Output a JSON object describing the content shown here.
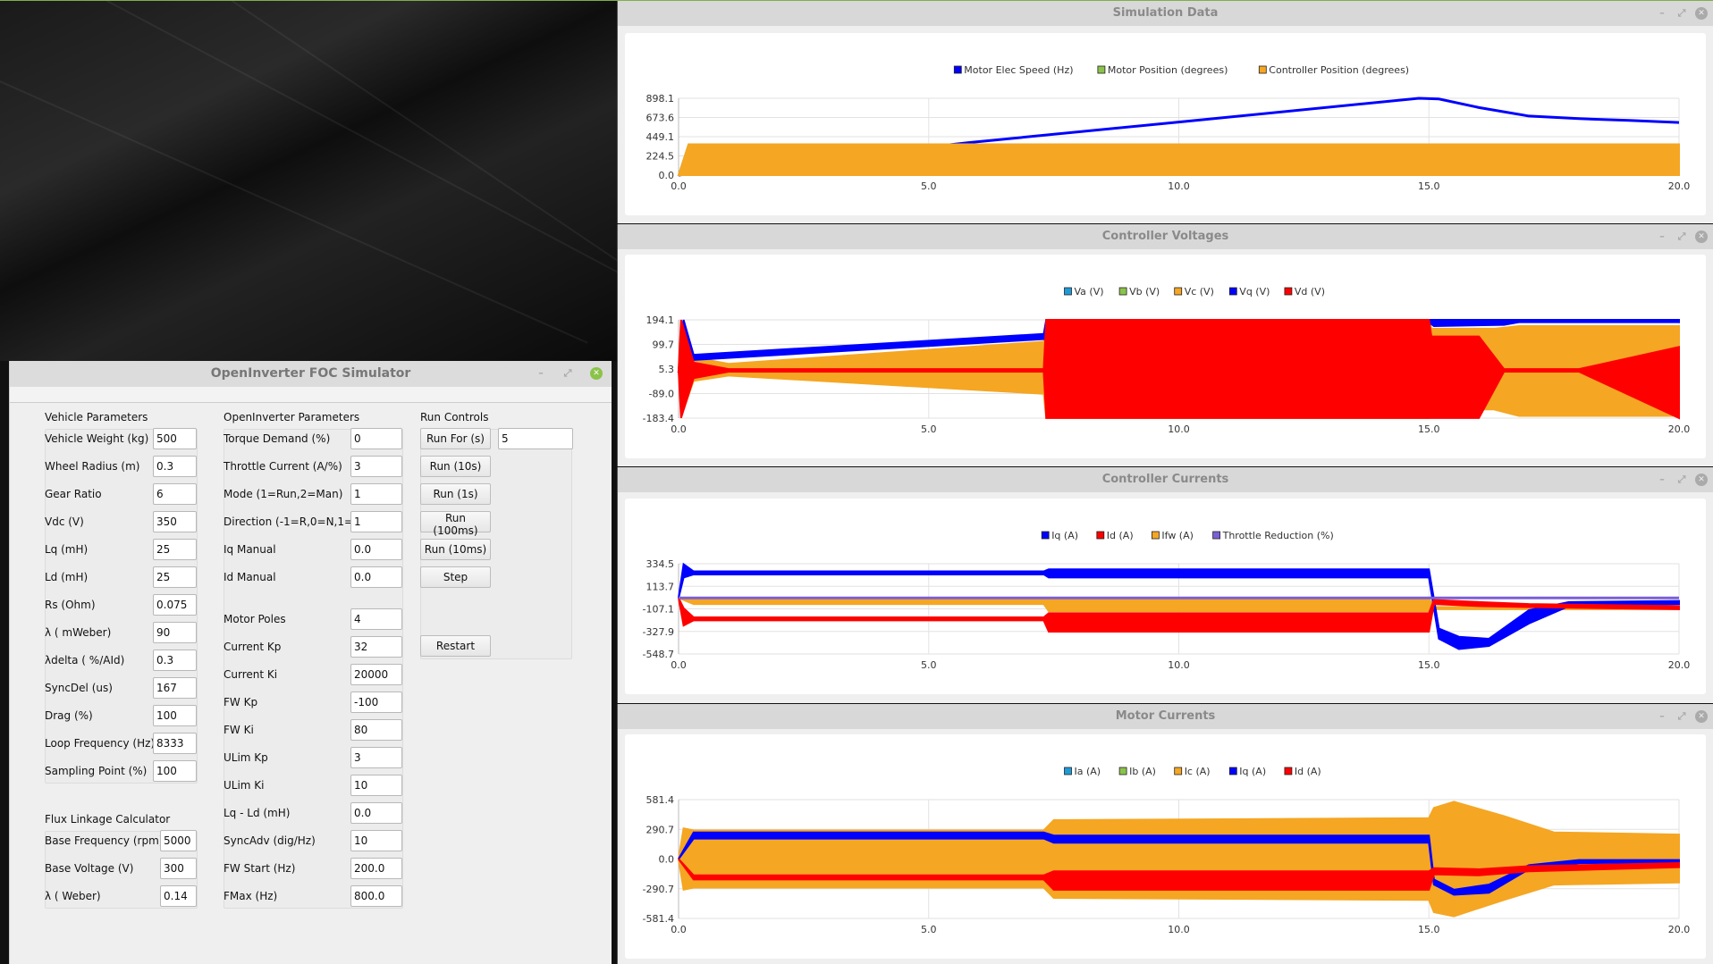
{
  "simulator": {
    "title": "OpenInverter FOC Simulator",
    "vehicle": {
      "heading": "Vehicle Parameters",
      "rows": [
        {
          "label": "Vehicle Weight (kg)",
          "value": "500"
        },
        {
          "label": "Wheel Radius (m)",
          "value": "0.3"
        },
        {
          "label": "Gear Ratio",
          "value": "6"
        },
        {
          "label": "Vdc (V)",
          "value": "350"
        },
        {
          "label": "Lq (mH)",
          "value": "25"
        },
        {
          "label": "Ld (mH)",
          "value": "25"
        },
        {
          "label": "Rs (Ohm)",
          "value": "0.075"
        },
        {
          "label": "λ ( mWeber)",
          "value": "90"
        },
        {
          "label": "λdelta ( %/AId)",
          "value": "0.3"
        },
        {
          "label": "SyncDel (us)",
          "value": "167"
        },
        {
          "label": "Drag (%)",
          "value": "100"
        },
        {
          "label": "Loop Frequency (Hz)",
          "value": "8333"
        },
        {
          "label": "Sampling Point (%)",
          "value": "100"
        }
      ]
    },
    "flux": {
      "heading": "Flux Linkage Calculator",
      "rows": [
        {
          "label": "Base Frequency (rpm)",
          "value": "5000"
        },
        {
          "label": "Base Voltage (V)",
          "value": "300"
        },
        {
          "label": "λ ( Weber)",
          "value": "0.14"
        }
      ]
    },
    "openinverter": {
      "heading": "OpenInverter Parameters",
      "rows": [
        {
          "label": "Torque Demand (%)",
          "value": "0"
        },
        {
          "label": "Throttle Current (A/%)",
          "value": "3"
        },
        {
          "label": "Mode (1=Run,2=Man)",
          "value": "1"
        },
        {
          "label": "Direction (-1=R,0=N,1=F)",
          "value": "1"
        },
        {
          "label": "Iq Manual",
          "value": "0.0"
        },
        {
          "label": "Id Manual",
          "value": "0.0"
        },
        {
          "label": "Motor Poles",
          "value": "4"
        },
        {
          "label": "Current Kp",
          "value": "32"
        },
        {
          "label": "Current Ki",
          "value": "20000"
        },
        {
          "label": "FW Kp",
          "value": "-100"
        },
        {
          "label": "FW Ki",
          "value": "80"
        },
        {
          "label": "ULim Kp",
          "value": "3"
        },
        {
          "label": "ULim Ki",
          "value": "10"
        },
        {
          "label": "Lq - Ld (mH)",
          "value": "0.0"
        },
        {
          "label": "SyncAdv (dig/Hz)",
          "value": "10"
        },
        {
          "label": "FW Start (Hz)",
          "value": "200.0"
        },
        {
          "label": "FMax (Hz)",
          "value": "800.0"
        }
      ]
    },
    "run": {
      "heading": "Run Controls",
      "run_for_label": "Run For (s)",
      "run_for_value": "5",
      "buttons": [
        "Run (10s)",
        "Run (1s)",
        "Run (100ms)",
        "Run (10ms)",
        "Step"
      ],
      "restart": "Restart"
    }
  },
  "chart_data": [
    {
      "window_title": "Simulation Data",
      "type": "line",
      "legend": [
        {
          "name": "Motor Elec Speed (Hz)",
          "color": "#0000ff"
        },
        {
          "name": "Motor Position (degrees)",
          "color": "#8bc34a"
        },
        {
          "name": "Controller Position (degrees)",
          "color": "#f5a623"
        }
      ],
      "xlim": [
        0,
        20
      ],
      "ylim": [
        0,
        898.1
      ],
      "xticks": [
        "0.0",
        "5.0",
        "10.0",
        "15.0",
        "20.0"
      ],
      "yticks": [
        "0.0",
        "224.5",
        "449.1",
        "673.6",
        "898.1"
      ],
      "grid": true,
      "legend_position": "top",
      "series": [
        {
          "name": "Motor Elec Speed (Hz)",
          "color": "#0000ff",
          "x": [
            0,
            0.3,
            5.8,
            10,
            14.8,
            15.2,
            16,
            17,
            18,
            19,
            20
          ],
          "y": [
            0,
            20,
            380,
            620,
            898,
            890,
            790,
            690,
            660,
            640,
            615
          ]
        },
        {
          "name": "Motor Position (degrees)",
          "color": "#8bc34a",
          "x": [
            0,
            0.2,
            20
          ],
          "lo": [
            0,
            0,
            0
          ],
          "hi": [
            0,
            360,
            360
          ]
        },
        {
          "name": "Controller Position (degrees)",
          "color": "#f5a623",
          "x": [
            0,
            0.2,
            0.25,
            20
          ],
          "lo": [
            0,
            0,
            0,
            0
          ],
          "hi": [
            0,
            360,
            360,
            360
          ]
        }
      ]
    },
    {
      "window_title": "Controller Voltages",
      "type": "line",
      "legend": [
        {
          "name": "Va (V)",
          "color": "#1e9bd7"
        },
        {
          "name": "Vb (V)",
          "color": "#8bc34a"
        },
        {
          "name": "Vc (V)",
          "color": "#f5a623"
        },
        {
          "name": "Vq (V)",
          "color": "#0000ff"
        },
        {
          "name": "Vd (V)",
          "color": "#ff0000"
        }
      ],
      "xlim": [
        0,
        20
      ],
      "ylim": [
        -183.4,
        194.1
      ],
      "xticks": [
        "0.0",
        "5.0",
        "10.0",
        "15.0",
        "20.0"
      ],
      "yticks": [
        "-183.4",
        "-89.0",
        "5.3",
        "99.7",
        "194.1"
      ],
      "grid": true,
      "legend_position": "top",
      "series": [
        {
          "name": "Vc (V)",
          "color": "#f5a623",
          "x": [
            0,
            0.1,
            0.3,
            1,
            7.3,
            7.35,
            15,
            15.05,
            16.3,
            16.8,
            20
          ],
          "lo": [
            0,
            -150,
            -40,
            -20,
            -90,
            -183,
            -183,
            -150,
            -150,
            -175,
            -175
          ],
          "hi": [
            0,
            190,
            50,
            25,
            110,
            194,
            194,
            160,
            160,
            170,
            170
          ]
        },
        {
          "name": "Vq (V)",
          "color": "#0000ff",
          "x": [
            0,
            0.1,
            0.3,
            7.3,
            7.35,
            15,
            15.1,
            16.5,
            16.8,
            20
          ],
          "lo": [
            0,
            20,
            40,
            120,
            185,
            185,
            170,
            175,
            185,
            185
          ],
          "hi": [
            0,
            194,
            60,
            140,
            194,
            194,
            194,
            194,
            194,
            194
          ]
        },
        {
          "name": "Vd (V)",
          "color": "#ff0000",
          "x": [
            0,
            0.05,
            0.3,
            1,
            7.3,
            7.35,
            15,
            15.05,
            16,
            16.5,
            17,
            18,
            20
          ],
          "lo": [
            0,
            -183,
            -30,
            -5,
            -5,
            -183,
            -183,
            -183,
            -183,
            -5,
            -5,
            -5,
            -183
          ],
          "hi": [
            0,
            194,
            30,
            5,
            5,
            194,
            194,
            130,
            130,
            5,
            5,
            5,
            90
          ]
        }
      ]
    },
    {
      "window_title": "Controller Currents",
      "type": "line",
      "legend": [
        {
          "name": "Iq (A)",
          "color": "#0000ff"
        },
        {
          "name": "Id (A)",
          "color": "#ff0000"
        },
        {
          "name": "Ifw (A)",
          "color": "#f5a623"
        },
        {
          "name": "Throttle Reduction (%)",
          "color": "#7b5fd6"
        }
      ],
      "xlim": [
        0,
        20
      ],
      "ylim": [
        -548.7,
        334.5
      ],
      "xticks": [
        "0.0",
        "5.0",
        "10.0",
        "15.0",
        "20.0"
      ],
      "yticks": [
        "-548.7",
        "-327.9",
        "-107.1",
        "113.7",
        "334.5"
      ],
      "grid": true,
      "legend_position": "top",
      "series": [
        {
          "name": "Ifw (A)",
          "color": "#f5a623",
          "x": [
            0,
            0.3,
            7.3,
            7.4,
            15,
            15.1,
            20
          ],
          "lo": [
            0,
            -60,
            -60,
            -130,
            -130,
            -110,
            -110
          ],
          "hi": [
            0,
            0,
            0,
            -5,
            -5,
            -90,
            -90
          ]
        },
        {
          "name": "Iq (A)",
          "color": "#0000ff",
          "x": [
            0,
            0.1,
            0.3,
            7.3,
            7.4,
            15,
            15.2,
            15.6,
            16.2,
            17,
            17.8,
            20
          ],
          "lo": [
            0,
            200,
            230,
            230,
            200,
            200,
            -400,
            -500,
            -470,
            -250,
            -80,
            -60
          ],
          "hi": [
            0,
            330,
            260,
            260,
            280,
            280,
            -300,
            -380,
            -400,
            -120,
            -40,
            -30
          ]
        },
        {
          "name": "Id (A)",
          "color": "#ff0000",
          "x": [
            0,
            0.1,
            0.3,
            7.3,
            7.4,
            15,
            15.1,
            16,
            17,
            20
          ],
          "lo": [
            0,
            -270,
            -220,
            -220,
            -330,
            -330,
            -60,
            -80,
            -90,
            -110
          ],
          "hi": [
            0,
            -100,
            -190,
            -190,
            -150,
            -150,
            -20,
            -40,
            -60,
            -80
          ]
        },
        {
          "name": "Throttle Reduction (%)",
          "color": "#7b5fd6",
          "x": [
            0,
            20
          ],
          "y": [
            0,
            0
          ]
        }
      ]
    },
    {
      "window_title": "Motor Currents",
      "type": "line",
      "legend": [
        {
          "name": "Ia (A)",
          "color": "#1e9bd7"
        },
        {
          "name": "Ib (A)",
          "color": "#8bc34a"
        },
        {
          "name": "Ic (A)",
          "color": "#f5a623"
        },
        {
          "name": "Iq (A)",
          "color": "#0000ff"
        },
        {
          "name": "Id (A)",
          "color": "#ff0000"
        }
      ],
      "xlim": [
        0,
        20
      ],
      "ylim": [
        -581.4,
        581.4
      ],
      "xticks": [
        "0.0",
        "5.0",
        "10.0",
        "15.0",
        "20.0"
      ],
      "yticks": [
        "-581.4",
        "-290.7",
        "0.0",
        "290.7",
        "581.4"
      ],
      "grid": true,
      "legend_position": "top",
      "series": [
        {
          "name": "Ic (A)",
          "color": "#f5a623",
          "x": [
            0,
            0.1,
            0.3,
            7.3,
            7.5,
            15,
            15.1,
            15.5,
            16.5,
            17.5,
            20
          ],
          "lo": [
            0,
            -300,
            -280,
            -280,
            -380,
            -400,
            -520,
            -560,
            -400,
            -250,
            -230
          ],
          "hi": [
            0,
            300,
            280,
            280,
            380,
            400,
            500,
            560,
            420,
            260,
            240
          ]
        },
        {
          "name": "Iq (A)",
          "color": "#0000ff",
          "x": [
            0,
            0.3,
            7.3,
            7.5,
            15,
            15.1,
            15.5,
            16.2,
            17,
            18,
            20
          ],
          "lo": [
            0,
            200,
            200,
            160,
            160,
            -250,
            -350,
            -330,
            -100,
            -40,
            -30
          ],
          "hi": [
            0,
            260,
            260,
            230,
            230,
            -200,
            -300,
            -250,
            -60,
            -10,
            -10
          ]
        },
        {
          "name": "Id (A)",
          "color": "#ff0000",
          "x": [
            0,
            0.3,
            7.3,
            7.5,
            15,
            15.1,
            16,
            17,
            20
          ],
          "lo": [
            0,
            -200,
            -200,
            -300,
            -300,
            -150,
            -160,
            -120,
            -80
          ],
          "hi": [
            0,
            -160,
            -160,
            -120,
            -120,
            -90,
            -100,
            -70,
            -40
          ]
        }
      ]
    }
  ]
}
